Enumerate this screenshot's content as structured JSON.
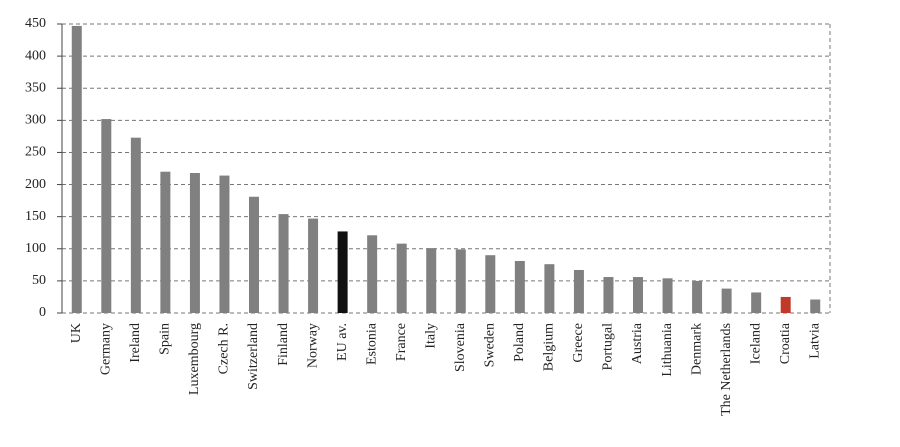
{
  "chart_data": {
    "type": "bar",
    "categories": [
      "UK",
      "Germany",
      "Ireland",
      "Spain",
      "Luxembourg",
      "Czech R.",
      "Switzerland",
      "Finland",
      "Norway",
      "EU av.",
      "Estonia",
      "France",
      "Italy",
      "Slovenia",
      "Sweden",
      "Poland",
      "Belgium",
      "Greece",
      "Portugal",
      "Austria",
      "Lithuania",
      "Denmark",
      "The Netherlands",
      "Iceland",
      "Croatia",
      "Latvia"
    ],
    "values": [
      447,
      302,
      273,
      220,
      218,
      214,
      181,
      154,
      147,
      127,
      121,
      108,
      101,
      99,
      90,
      81,
      76,
      67,
      56,
      56,
      54,
      50,
      38,
      32,
      25,
      21
    ],
    "colors": [
      "#808080",
      "#808080",
      "#808080",
      "#808080",
      "#808080",
      "#808080",
      "#808080",
      "#808080",
      "#808080",
      "#111111",
      "#808080",
      "#808080",
      "#808080",
      "#808080",
      "#808080",
      "#808080",
      "#808080",
      "#808080",
      "#808080",
      "#808080",
      "#808080",
      "#808080",
      "#808080",
      "#808080",
      "#c0392b",
      "#808080"
    ],
    "ylim": [
      0,
      450
    ],
    "yticks": [
      0,
      50,
      100,
      150,
      200,
      250,
      300,
      350,
      400,
      450
    ],
    "grid": true
  }
}
